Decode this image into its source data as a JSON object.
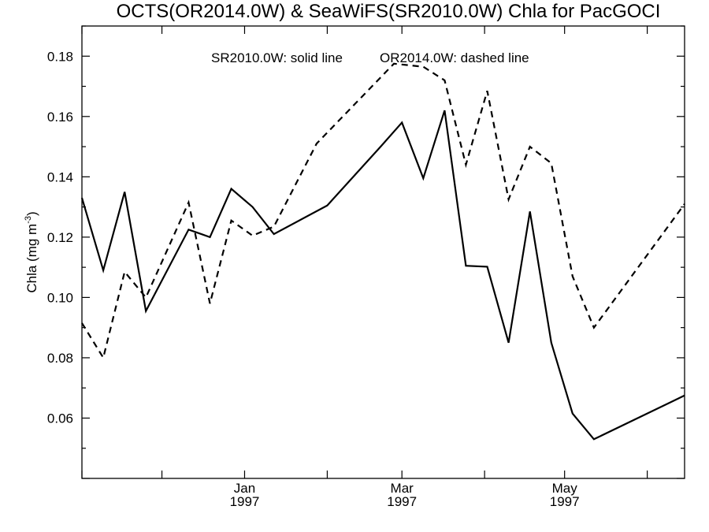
{
  "chart_data": {
    "type": "line",
    "title": "OCTS(OR2014.0W) & SeaWiFS(SR2010.0W)  Chla for PacGOCI",
    "ylabel": "Chla (mg m",
    "ylabel_sup": "-3",
    "ylabel_close": ")",
    "annotations": [
      "SR2010.0W: solid line",
      "OR2014.0W: dashed line"
    ],
    "ylim": [
      0.04,
      0.19
    ],
    "y_ticks": [
      "0.06",
      "0.08",
      "0.10",
      "0.12",
      "0.14",
      "0.16",
      "0.18"
    ],
    "xlim": [
      "1996-11-01",
      "1997-06-15"
    ],
    "x_major_ticks": [
      {
        "date": "1996-11-01"
      },
      {
        "date": "1996-12-01"
      },
      {
        "date": "1997-01-01",
        "month": "Jan",
        "year": "1997"
      },
      {
        "date": "1997-02-01"
      },
      {
        "date": "1997-03-01",
        "month": "Mar",
        "year": "1997"
      },
      {
        "date": "1997-04-01"
      },
      {
        "date": "1997-05-01",
        "month": "May",
        "year": "1997"
      },
      {
        "date": "1997-06-01"
      }
    ],
    "grid": false,
    "series": [
      {
        "style": "solid",
        "points": [
          [
            "1996-11-01",
            0.133
          ],
          [
            "1996-11-09",
            0.109
          ],
          [
            "1996-11-17",
            0.135
          ],
          [
            "1996-11-25",
            0.0955
          ],
          [
            "1996-12-11",
            0.1225
          ],
          [
            "1996-12-19",
            0.12
          ],
          [
            "1996-12-27",
            0.136
          ],
          [
            "1997-01-04",
            0.13
          ],
          [
            "1997-01-12",
            0.121
          ],
          [
            "1997-02-01",
            0.1305
          ],
          [
            "1997-02-21",
            0.15
          ],
          [
            "1997-03-01",
            0.158
          ],
          [
            "1997-03-09",
            0.1395
          ],
          [
            "1997-03-17",
            0.162
          ],
          [
            "1997-03-25",
            0.1105
          ],
          [
            "1997-04-02",
            0.1102
          ],
          [
            "1997-04-10",
            0.085
          ],
          [
            "1997-04-18",
            0.1285
          ],
          [
            "1997-04-26",
            0.085
          ],
          [
            "1997-05-04",
            0.0615
          ],
          [
            "1997-05-12",
            0.053
          ],
          [
            "1997-06-15",
            0.0675
          ]
        ]
      },
      {
        "style": "dashed",
        "points": [
          [
            "1996-11-01",
            0.0915
          ],
          [
            "1996-11-09",
            0.08
          ],
          [
            "1996-11-17",
            0.1085
          ],
          [
            "1996-11-25",
            0.1
          ],
          [
            "1996-12-11",
            0.1315
          ],
          [
            "1996-12-19",
            0.098
          ],
          [
            "1996-12-27",
            0.1255
          ],
          [
            "1997-01-04",
            0.1205
          ],
          [
            "1997-01-12",
            0.1235
          ],
          [
            "1997-01-28",
            0.151
          ],
          [
            "1997-02-26",
            0.1775
          ],
          [
            "1997-03-09",
            0.1765
          ],
          [
            "1997-03-17",
            0.172
          ],
          [
            "1997-03-25",
            0.144
          ],
          [
            "1997-04-02",
            0.1685
          ],
          [
            "1997-04-10",
            0.1325
          ],
          [
            "1997-04-18",
            0.15
          ],
          [
            "1997-04-26",
            0.1445
          ],
          [
            "1997-05-04",
            0.107
          ],
          [
            "1997-05-12",
            0.09
          ],
          [
            "1997-06-15",
            0.131
          ]
        ]
      }
    ]
  }
}
